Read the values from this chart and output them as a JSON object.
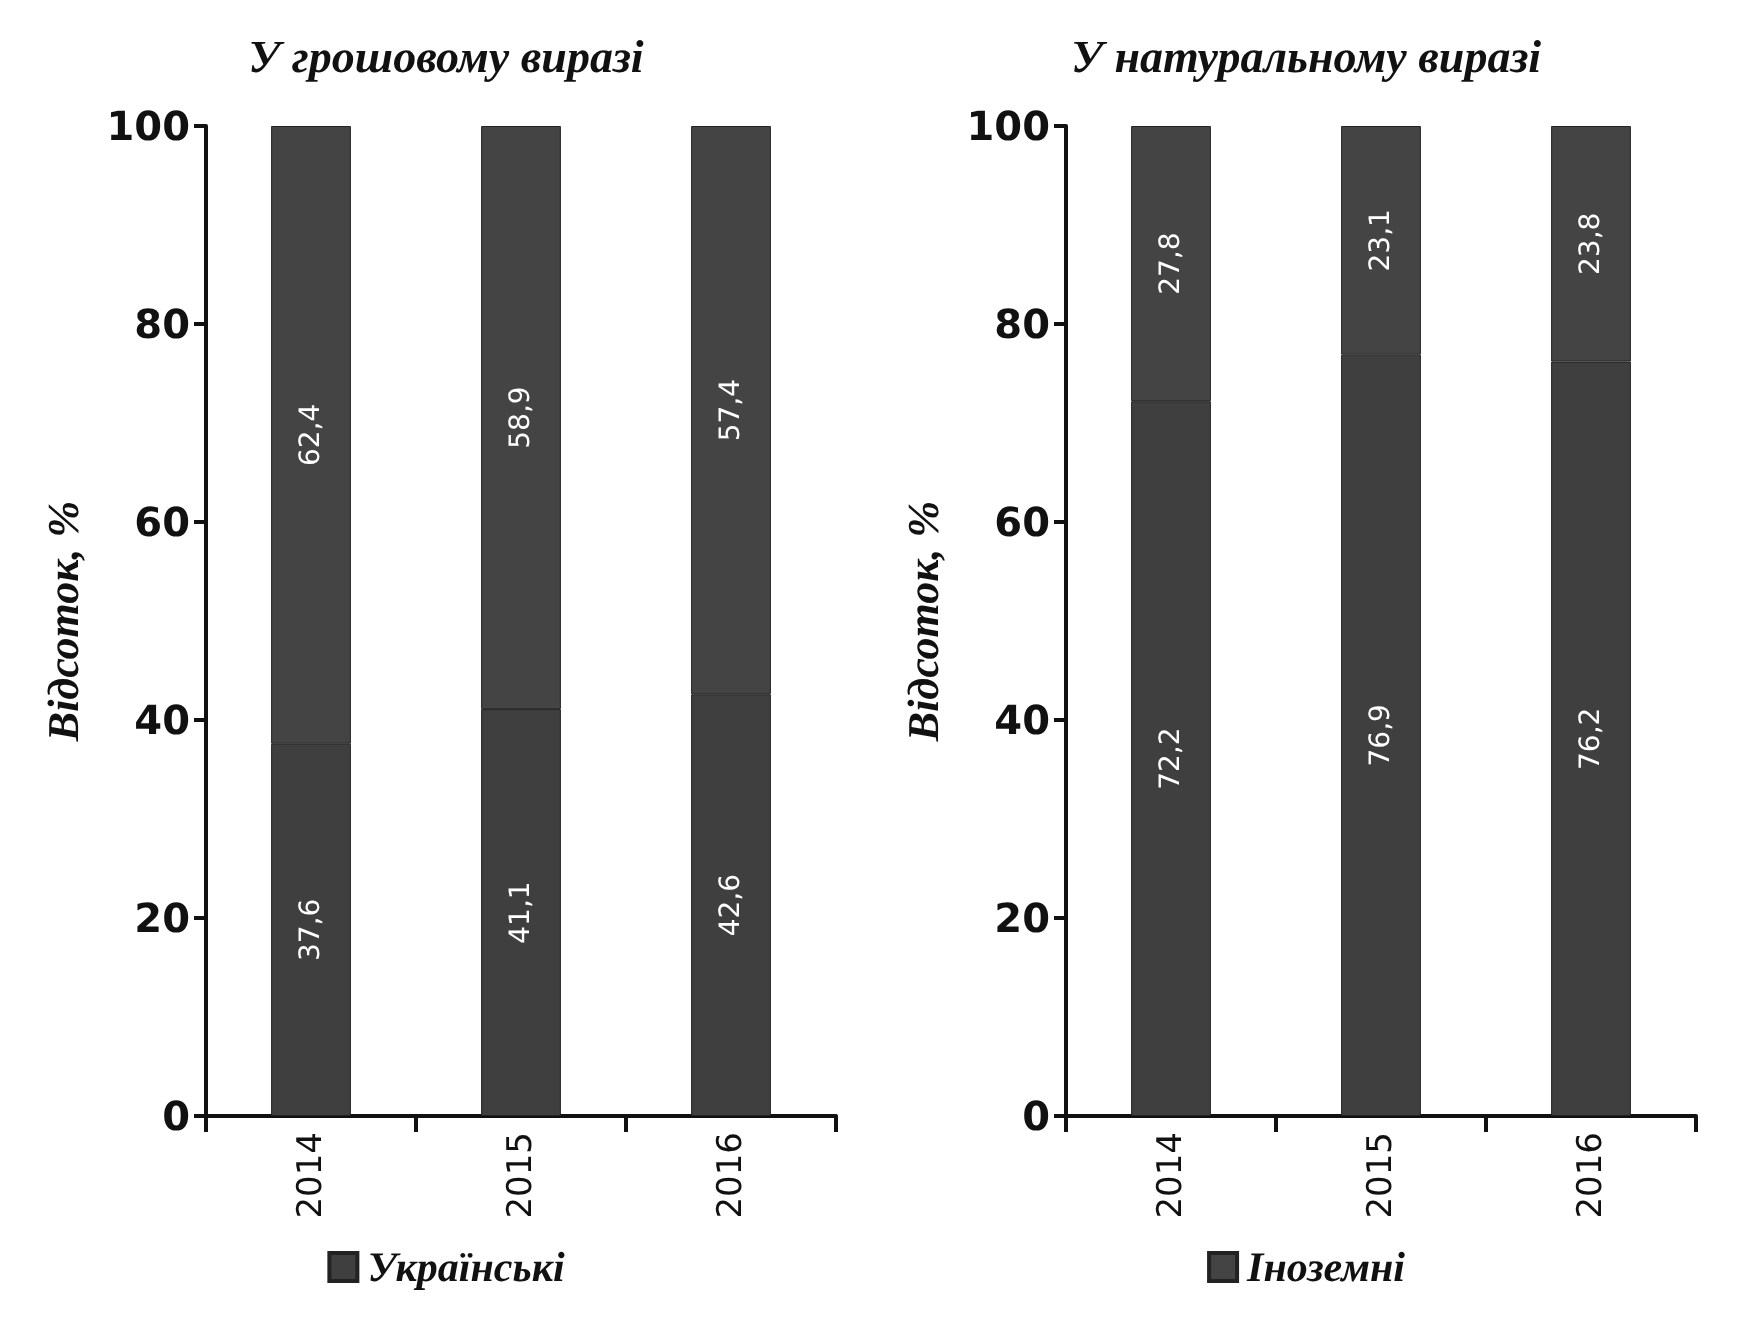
{
  "chart_data": [
    {
      "type": "bar",
      "title": "У грошовому виразі",
      "ylabel": "Відсоток, %",
      "categories": [
        "2014",
        "2015",
        "2016"
      ],
      "stacked": true,
      "ylim": [
        0,
        100
      ],
      "yticks": [
        0,
        20,
        40,
        60,
        80,
        100
      ],
      "grid": false,
      "legend": "bottom",
      "series": [
        {
          "name": "Українські",
          "color": "#3f3f3f",
          "values": [
            37.6,
            41.1,
            42.6
          ],
          "value_labels": [
            "37,6",
            "41,1",
            "42,6"
          ]
        },
        {
          "color": "#444444",
          "values": [
            62.4,
            58.9,
            57.4
          ],
          "value_labels": [
            "62,4",
            "58,9",
            "57,4"
          ]
        }
      ]
    },
    {
      "type": "bar",
      "title": "У натуральному виразі",
      "ylabel": "Відсоток, %",
      "categories": [
        "2014",
        "2015",
        "2016"
      ],
      "stacked": true,
      "ylim": [
        0,
        100
      ],
      "yticks": [
        0,
        20,
        40,
        60,
        80,
        100
      ],
      "grid": false,
      "legend": "bottom",
      "series": [
        {
          "color": "#3f3f3f",
          "values": [
            72.2,
            76.9,
            76.2
          ],
          "value_labels": [
            "72,2",
            "76,9",
            "76,2"
          ]
        },
        {
          "name": "Іноземні",
          "color": "#444444",
          "values": [
            27.8,
            23.1,
            23.8
          ],
          "value_labels": [
            "27,8",
            "23,1",
            "23,8"
          ]
        }
      ]
    }
  ]
}
